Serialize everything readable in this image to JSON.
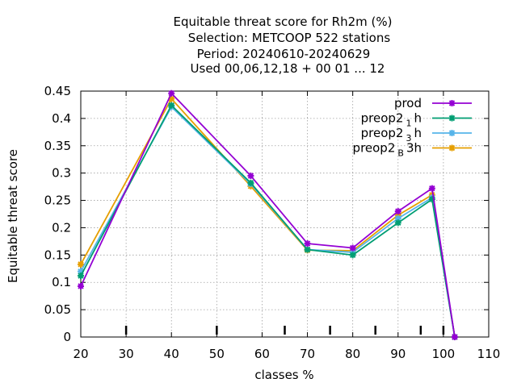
{
  "chart_data": {
    "type": "line",
    "title_lines": [
      "Equitable threat score  for Rh2m (%)",
      "Selection: METCOOP    522 stations",
      "Period: 20240610-20240629",
      "Used  00,06,12,18 + 00 01 ... 12"
    ],
    "xlabel": "classes %",
    "ylabel": "Equitable threat score",
    "xlim": [
      20,
      110
    ],
    "ylim": [
      0,
      0.45
    ],
    "xticks": [
      20,
      30,
      40,
      50,
      60,
      70,
      80,
      90,
      100,
      110
    ],
    "yticks": [
      0,
      0.05,
      0.1,
      0.15,
      0.2,
      0.25,
      0.3,
      0.35,
      0.4,
      0.45
    ],
    "ytick_labels": [
      "0",
      "0.05",
      "0.1",
      "0.15",
      "0.2",
      "0.25",
      "0.3",
      "0.35",
      "0.4",
      "0.45"
    ],
    "class_markers": [
      30,
      50,
      65,
      75,
      85,
      95,
      100
    ],
    "grid": true,
    "legend_position": "top-right",
    "series": [
      {
        "name": "prod",
        "label_main": "prod",
        "label_sub": "",
        "label_after": "",
        "color": "#9400d3",
        "x": [
          20,
          40,
          57.5,
          70,
          80,
          90,
          97.5,
          102.5
        ],
        "y": [
          0.093,
          0.446,
          0.295,
          0.171,
          0.163,
          0.23,
          0.272,
          0.0
        ]
      },
      {
        "name": "preop2_1h",
        "label_main": "preop2",
        "label_sub": "1",
        "label_after": "h",
        "color": "#009e73",
        "x": [
          20,
          40,
          57.5,
          70,
          80,
          90,
          97.5,
          102.5
        ],
        "y": [
          0.112,
          0.424,
          0.282,
          0.16,
          0.15,
          0.209,
          0.252,
          0.0
        ]
      },
      {
        "name": "preop2_3h",
        "label_main": "preop2",
        "label_sub": "3",
        "label_after": "h",
        "color": "#56b4e9",
        "x": [
          20,
          40,
          57.5,
          70,
          80,
          90,
          97.5,
          102.5
        ],
        "y": [
          0.12,
          0.421,
          0.28,
          0.16,
          0.155,
          0.217,
          0.255,
          0.0
        ]
      },
      {
        "name": "preop2_B3h",
        "label_main": "preop2",
        "label_sub": "B",
        "label_after": "3h",
        "color": "#e69f00",
        "x": [
          20,
          40,
          57.5,
          70,
          80,
          90,
          97.5,
          102.5
        ],
        "y": [
          0.133,
          0.436,
          0.276,
          0.159,
          0.158,
          0.223,
          0.26,
          0.0
        ]
      }
    ]
  }
}
